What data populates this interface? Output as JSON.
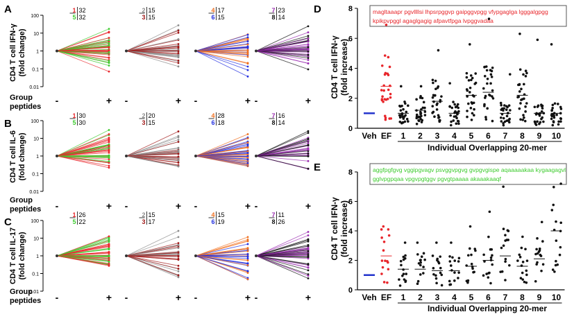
{
  "figure": "CD4 T cell cytokine responses to group peptides and individual overlapping 20-mers",
  "chart_data": [
    {
      "panel": "A",
      "type": "line",
      "ylabel": [
        "CD4 T cell IFN-γ",
        "(fold change)"
      ],
      "yscale": "log",
      "ylim": [
        0.01,
        100
      ],
      "yticks": [
        "100",
        "10",
        "1",
        "0.1",
        "0.01"
      ],
      "row_label": [
        "Group",
        "peptides"
      ],
      "groups": [
        {
          "top_left": "1",
          "top_right": "32",
          "bottom_left": "5",
          "bottom_right": "32",
          "colors": [
            "#e8262b",
            "#3ecb2f"
          ],
          "up_max": 70,
          "down_min": 0.05
        },
        {
          "top_left": "2",
          "top_right": "15",
          "bottom_left": "3",
          "bottom_right": "15",
          "colors": [
            "#8c8c8c",
            "#a01818"
          ],
          "up_max": 45,
          "down_min": 0.1
        },
        {
          "top_left": "4",
          "top_right": "17",
          "bottom_left": "6",
          "bottom_right": "15",
          "colors": [
            "#f07020",
            "#2430e0"
          ],
          "up_max": 40,
          "down_min": 0.03
        },
        {
          "top_left": "7",
          "top_right": "23",
          "bottom_left": "8",
          "bottom_right": "14",
          "colors": [
            "#9a2bb0",
            "#111111"
          ],
          "up_max": 45,
          "down_min": 0.08
        }
      ],
      "x_labels": [
        "-",
        "+"
      ]
    },
    {
      "panel": "B",
      "type": "line",
      "ylabel": [
        "CD4 T cell IL-6",
        "(fold change)"
      ],
      "yscale": "log",
      "ylim": [
        0.01,
        100
      ],
      "yticks": [
        "100",
        "10",
        "1",
        "0.1",
        "0.01"
      ],
      "row_label": [
        "Group",
        "peptides"
      ],
      "groups": [
        {
          "top_left": "1",
          "top_right": "30",
          "bottom_left": "5",
          "bottom_right": "30",
          "colors": [
            "#e8262b",
            "#3ecb2f"
          ],
          "up_max": 70,
          "down_min": 0.2
        },
        {
          "top_left": "2",
          "top_right": "20",
          "bottom_left": "3",
          "bottom_right": "15",
          "colors": [
            "#8c8c8c",
            "#a01818"
          ],
          "up_max": 60,
          "down_min": 0.25
        },
        {
          "top_left": "4",
          "top_right": "28",
          "bottom_left": "6",
          "bottom_right": "18",
          "colors": [
            "#f07020",
            "#2430e0"
          ],
          "up_max": 50,
          "down_min": 0.15
        },
        {
          "top_left": "7",
          "top_right": "16",
          "bottom_left": "8",
          "bottom_right": "14",
          "colors": [
            "#9a2bb0",
            "#111111"
          ],
          "up_max": 40,
          "down_min": 0.15
        }
      ],
      "x_labels": [
        "-",
        "+"
      ]
    },
    {
      "panel": "C",
      "type": "line",
      "ylabel": [
        "CD4 T cell IL-17",
        "(fold change)"
      ],
      "yscale": "log",
      "ylim": [
        0.01,
        100
      ],
      "yticks": [
        "100",
        "10",
        "1",
        "0.1",
        "0.01"
      ],
      "row_label": [
        "Group",
        "peptides"
      ],
      "groups": [
        {
          "top_left": "1",
          "top_right": "26",
          "bottom_left": "5",
          "bottom_right": "22",
          "colors": [
            "#e8262b",
            "#3ecb2f"
          ],
          "up_max": 40,
          "down_min": 0.25
        },
        {
          "top_left": "2",
          "top_right": "15",
          "bottom_left": "3",
          "bottom_right": "17",
          "colors": [
            "#8c8c8c",
            "#a01818"
          ],
          "up_max": 40,
          "down_min": 0.02
        },
        {
          "top_left": "4",
          "top_right": "15",
          "bottom_left": "6",
          "bottom_right": "19",
          "colors": [
            "#f07020",
            "#2430e0"
          ],
          "up_max": 40,
          "down_min": 0.04
        },
        {
          "top_left": "7",
          "top_right": "11",
          "bottom_left": "8",
          "bottom_right": "26",
          "colors": [
            "#9a2bb0",
            "#111111"
          ],
          "up_max": 40,
          "down_min": 0.05
        }
      ],
      "x_labels": [
        "-",
        "+"
      ]
    },
    {
      "panel": "D",
      "type": "scatter",
      "ylabel": [
        "CD4 T cell IFN-γ",
        "(fold increase)"
      ],
      "ylim": [
        0,
        8
      ],
      "yticks": [
        "8",
        "6",
        "4",
        "2",
        "0"
      ],
      "categories": [
        "Veh",
        "EF",
        "1",
        "2",
        "3",
        "4",
        "5",
        "6",
        "7",
        "8",
        "9",
        "10"
      ],
      "means": [
        1.0,
        2.8,
        1.0,
        1.2,
        1.8,
        1.0,
        2.2,
        2.4,
        1.0,
        2.2,
        1.0,
        1.0
      ],
      "n_points": [
        1,
        28,
        28,
        28,
        28,
        28,
        28,
        28,
        28,
        28,
        28,
        28
      ],
      "max_points": [
        1.0,
        6.9,
        2.8,
        2.8,
        5.2,
        3.0,
        5.6,
        7.3,
        3.6,
        6.3,
        5.9,
        5.6
      ],
      "xlabel": "Individual Overlapping 20-mer",
      "sequence": [
        "magltaaapr pgvllllsi lhpsrpggvp gaipggvpgg vfypgaglga lgggalgpgg",
        "kpikpvpggl agaglgagig afpavtfpga lvpggvadaa"
      ]
    },
    {
      "panel": "E",
      "type": "scatter",
      "ylabel": [
        "CD4 T cell IFN-γ",
        "(fold increase)"
      ],
      "ylim": [
        0,
        8
      ],
      "yticks": [
        "8",
        "6",
        "4",
        "2",
        "0"
      ],
      "categories": [
        "Veh",
        "EF",
        "1",
        "2",
        "3",
        "4",
        "5",
        "6",
        "7",
        "8",
        "9",
        "10"
      ],
      "means": [
        1.0,
        2.3,
        1.4,
        1.4,
        1.3,
        1.3,
        1.6,
        2.0,
        2.3,
        1.6,
        2.1,
        4.0
      ],
      "n_points": [
        1,
        16,
        16,
        16,
        16,
        16,
        16,
        16,
        16,
        16,
        16,
        16
      ],
      "max_points": [
        1.0,
        4.3,
        3.2,
        3.2,
        3.2,
        3.2,
        4.3,
        5.3,
        7.0,
        3.6,
        4.6,
        7.2
      ],
      "xlabel": "Individual Overlapping 20-mer",
      "sequence": [
        "aggfpgfgvg vggipgvagv psvggvpgvg gvpgvgispe aqaaaaakaa kygaagagvl",
        "gglvpgpqaa vpgvpgtggv pgvgtpaaaa akaaakaaqf"
      ]
    }
  ],
  "colors": {
    "veh": "#2233cc",
    "ef": "#e8262b",
    "seq_D": "#e8262b",
    "seq_E": "#3ecb2f",
    "dot": "#111111"
  }
}
